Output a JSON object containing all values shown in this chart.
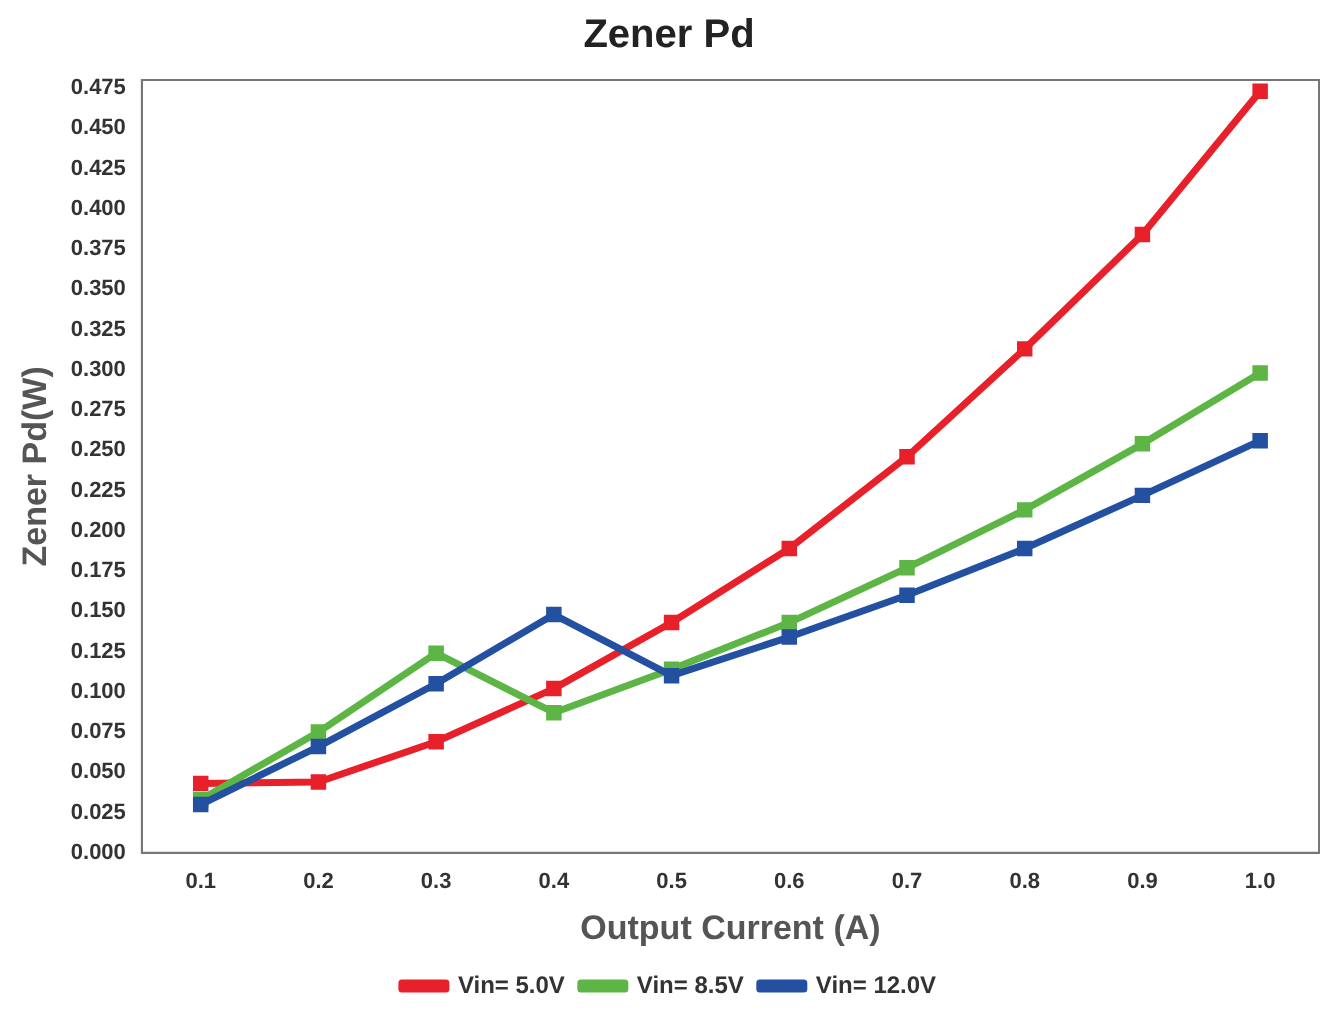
{
  "chart_data": {
    "type": "line",
    "title": "Zener Pd",
    "xlabel": "Output Current (A)",
    "ylabel": "Zener Pd(W)",
    "categories": [
      "0.1",
      "0.2",
      "0.3",
      "0.4",
      "0.5",
      "0.6",
      "0.7",
      "0.8",
      "0.9",
      "1.0"
    ],
    "series": [
      {
        "name": "Vin= 5.0V",
        "color": "#e8202a",
        "values": [
          0.043,
          0.044,
          0.069,
          0.102,
          0.143,
          0.189,
          0.246,
          0.313,
          0.384,
          0.473
        ]
      },
      {
        "name": "Vin= 8.5V",
        "color": "#5db545",
        "values": [
          0.033,
          0.075,
          0.124,
          0.087,
          0.114,
          0.143,
          0.177,
          0.213,
          0.254,
          0.298
        ]
      },
      {
        "name": "Vin= 12.0V",
        "color": "#2350a0",
        "values": [
          0.03,
          0.066,
          0.105,
          0.148,
          0.11,
          0.134,
          0.16,
          0.189,
          0.222,
          0.256
        ]
      }
    ],
    "ylim": [
      0,
      0.48
    ],
    "yticks": [
      {
        "value": 0,
        "label": "0.000"
      },
      0.025,
      {
        "value": 0.05,
        "label": "0.050"
      },
      0.075,
      {
        "value": 0.1,
        "label": "0.100"
      },
      0.125,
      {
        "value": 0.15,
        "label": "0.150"
      },
      0.175,
      {
        "value": 0.2,
        "label": "0.200"
      },
      0.225,
      {
        "value": 0.25,
        "label": "0.250"
      },
      0.275,
      {
        "value": 0.3,
        "label": "0.300"
      },
      0.325,
      {
        "value": 0.35,
        "label": "0.350"
      },
      0.375,
      {
        "value": 0.4,
        "label": "0.400"
      },
      0.425,
      {
        "value": 0.45,
        "label": "0.450"
      },
      0.475
    ],
    "grid": false,
    "legend": "bottom",
    "marker": "square",
    "line_style": "solid"
  }
}
